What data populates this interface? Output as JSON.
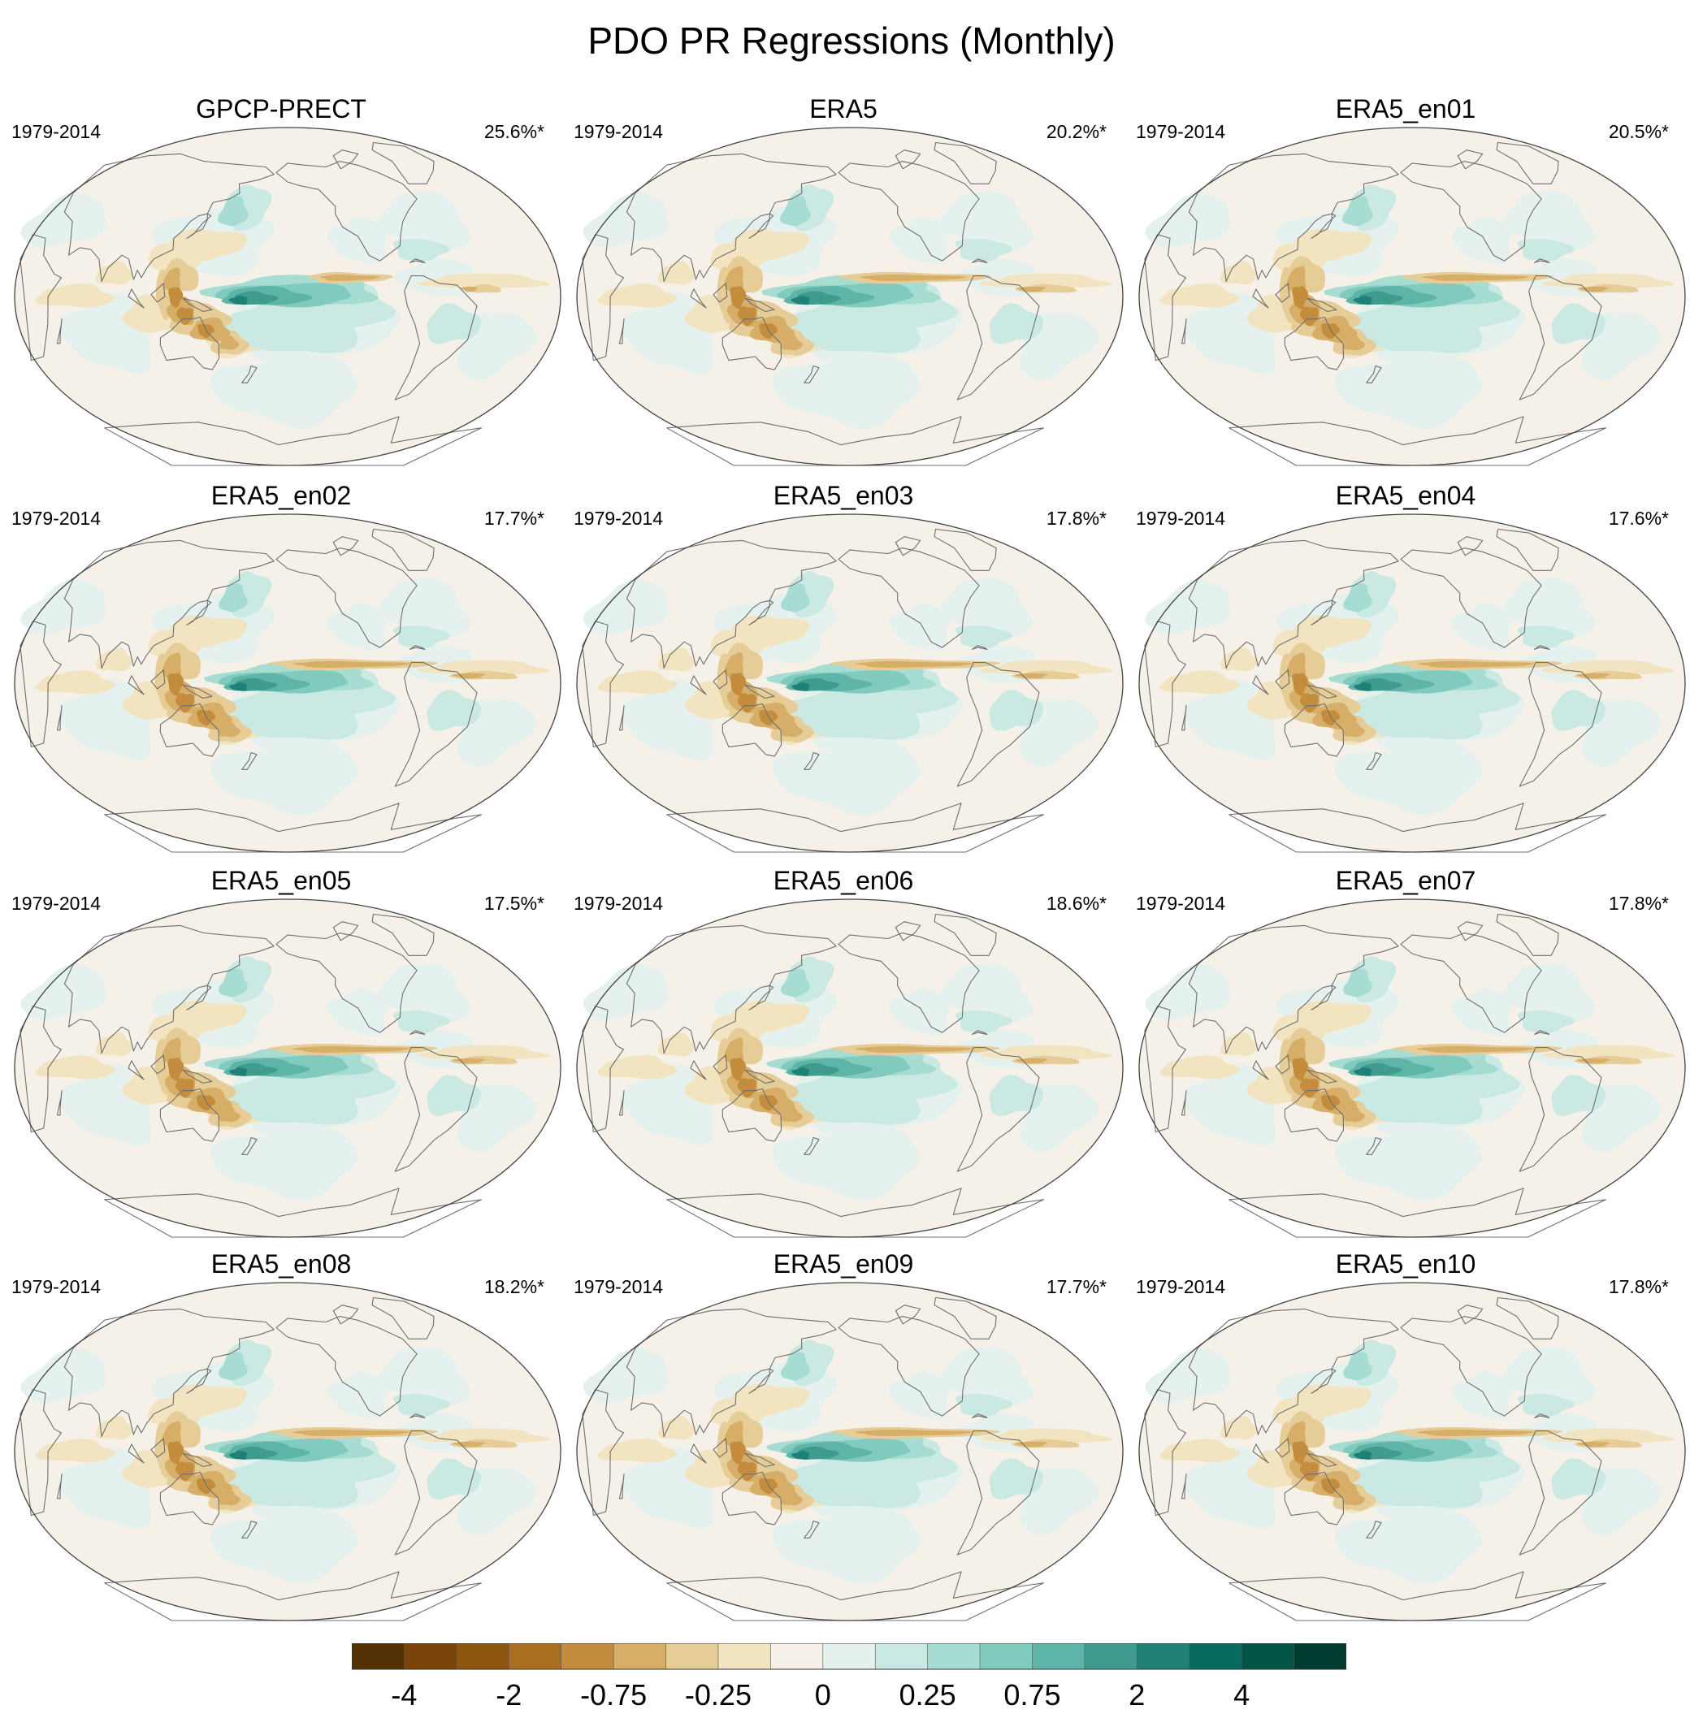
{
  "title": "PDO PR Regressions (Monthly)",
  "colors": [
    "#543005",
    "#7a430a",
    "#8e5710",
    "#a8701e",
    "#c48d3e",
    "#d6ae68",
    "#e6cd98",
    "#f2e4c0",
    "#f5f1e8",
    "#e5f1ee",
    "#cbe9e3",
    "#a6dcd2",
    "#80cbbd",
    "#5eb5a7",
    "#3e9b8d",
    "#1f8175",
    "#076a5e",
    "#015446",
    "#003c30"
  ],
  "legend_labels": [
    "-4",
    "-2",
    "-0.75",
    "-0.25",
    "0",
    "0.25",
    "0.75",
    "2",
    "4"
  ],
  "chart_data": {
    "type": "heatmap",
    "title": "PDO PR Regressions (Monthly)",
    "colorbar_levels": [
      "-4",
      "-2",
      "-0.75",
      "-0.25",
      "0",
      "0.25",
      "0.75",
      "2",
      "4"
    ],
    "panels": [
      {
        "name": "GPCP-PRECT",
        "period": "1979-2014",
        "pct": "25.6%*",
        "strength": 1.0,
        "band": 0.5,
        "drought": 0.9
      },
      {
        "name": "ERA5",
        "period": "1979-2014",
        "pct": "20.2%*",
        "strength": 1.0,
        "band": 0.9,
        "drought": 1.0
      },
      {
        "name": "ERA5_en01",
        "period": "1979-2014",
        "pct": "20.5%*",
        "strength": 1.0,
        "band": 0.9,
        "drought": 1.0
      },
      {
        "name": "ERA5_en02",
        "period": "1979-2014",
        "pct": "17.7%*",
        "strength": 0.95,
        "band": 1.0,
        "drought": 1.0
      },
      {
        "name": "ERA5_en03",
        "period": "1979-2014",
        "pct": "17.8%*",
        "strength": 0.95,
        "band": 1.0,
        "drought": 1.0
      },
      {
        "name": "ERA5_en04",
        "period": "1979-2014",
        "pct": "17.6%*",
        "strength": 0.95,
        "band": 1.0,
        "drought": 1.0
      },
      {
        "name": "ERA5_en05",
        "period": "1979-2014",
        "pct": "17.5%*",
        "strength": 0.95,
        "band": 1.0,
        "drought": 1.0
      },
      {
        "name": "ERA5_en06",
        "period": "1979-2014",
        "pct": "18.6%*",
        "strength": 0.95,
        "band": 1.0,
        "drought": 1.0
      },
      {
        "name": "ERA5_en07",
        "period": "1979-2014",
        "pct": "17.8%*",
        "strength": 0.95,
        "band": 1.0,
        "drought": 1.0
      },
      {
        "name": "ERA5_en08",
        "period": "1979-2014",
        "pct": "18.2%*",
        "strength": 0.95,
        "band": 1.0,
        "drought": 1.0
      },
      {
        "name": "ERA5_en09",
        "period": "1979-2014",
        "pct": "17.7%*",
        "strength": 0.95,
        "band": 1.0,
        "drought": 1.0
      },
      {
        "name": "ERA5_en10",
        "period": "1979-2014",
        "pct": "17.8%*",
        "strength": 0.95,
        "band": 1.0,
        "drought": 1.0
      }
    ]
  }
}
